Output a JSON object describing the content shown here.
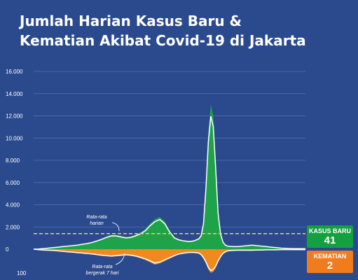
{
  "title_line1": "Jumlah Harian Kasus Baru &",
  "title_line2": "Kematian Akibat Covid-19 di Jakarta",
  "colors": {
    "background": "#2b4a8e",
    "cases": "#1fa34a",
    "deaths": "#f08a1e",
    "average_line": "#ffffff",
    "annotation": "#f0d24a",
    "grid": "#4a66a6"
  },
  "chart_data": {
    "type": "area",
    "series": [
      {
        "name": "Kasus baru",
        "x": [
          0,
          10,
          20,
          30,
          40,
          50,
          60,
          70,
          80,
          90,
          100,
          110,
          120,
          130,
          140,
          150,
          160,
          170,
          180,
          190,
          200,
          210,
          220,
          230,
          240,
          250,
          260,
          270,
          280,
          290,
          300,
          310,
          320,
          330,
          340,
          345,
          350,
          355,
          360,
          365,
          370,
          375,
          380,
          385,
          390,
          395,
          400,
          410,
          420,
          430,
          440,
          450,
          460,
          470,
          480,
          490,
          500,
          510,
          520,
          530,
          540,
          550,
          560
        ],
        "values": [
          0,
          20,
          60,
          100,
          150,
          200,
          250,
          300,
          350,
          400,
          480,
          550,
          650,
          800,
          950,
          1150,
          1300,
          1300,
          1200,
          1100,
          1150,
          1300,
          1500,
          1800,
          2300,
          2700,
          2900,
          2500,
          1700,
          1100,
          900,
          800,
          750,
          800,
          1000,
          1300,
          2500,
          6000,
          10500,
          13000,
          12000,
          8000,
          3500,
          1500,
          700,
          400,
          300,
          250,
          250,
          300,
          350,
          400,
          350,
          300,
          250,
          200,
          150,
          100,
          80,
          60,
          50,
          45,
          41
        ]
      },
      {
        "name": "Kematian",
        "x": [
          0,
          10,
          20,
          30,
          40,
          50,
          60,
          70,
          80,
          90,
          100,
          110,
          120,
          130,
          140,
          150,
          160,
          170,
          180,
          190,
          200,
          210,
          220,
          230,
          240,
          250,
          260,
          270,
          280,
          290,
          300,
          310,
          320,
          330,
          340,
          345,
          350,
          355,
          360,
          365,
          370,
          375,
          380,
          385,
          390,
          395,
          400,
          410,
          420,
          430,
          440,
          450,
          460,
          470,
          480,
          490,
          500,
          510,
          520,
          530,
          540,
          550,
          560
        ],
        "values": [
          0,
          2,
          4,
          5,
          6,
          8,
          10,
          12,
          14,
          16,
          18,
          20,
          22,
          25,
          28,
          30,
          32,
          30,
          28,
          26,
          28,
          32,
          38,
          45,
          55,
          65,
          60,
          50,
          40,
          30,
          22,
          18,
          15,
          15,
          18,
          25,
          40,
          60,
          85,
          100,
          95,
          80,
          55,
          35,
          20,
          12,
          8,
          6,
          5,
          5,
          5,
          5,
          4,
          4,
          3,
          3,
          3,
          2,
          2,
          2,
          2,
          2,
          2
        ]
      }
    ],
    "yticks_top": [
      0,
      2000,
      4000,
      6000,
      8000,
      10000,
      12000,
      14000,
      16000
    ],
    "ytick_labels_top": [
      "0",
      "2.000",
      "4.000",
      "6.000",
      "8.000",
      "10.000",
      "12.000",
      "14.000",
      "16.000"
    ],
    "yticks_bottom": [
      100
    ],
    "ytick_labels_bottom": [
      "100"
    ],
    "ylim_top": [
      0,
      16000
    ],
    "ylim_bottom": [
      0,
      130
    ],
    "average_reference": 1400,
    "annotations": {
      "harian": "Rata-rata\nharian",
      "bergerak": "Rata-rata\nbergerak 7 hari"
    },
    "latest": {
      "cases_label": "KASUS BARU",
      "cases_value": "41",
      "deaths_label": "KEMATIAN",
      "deaths_value": "2"
    }
  }
}
